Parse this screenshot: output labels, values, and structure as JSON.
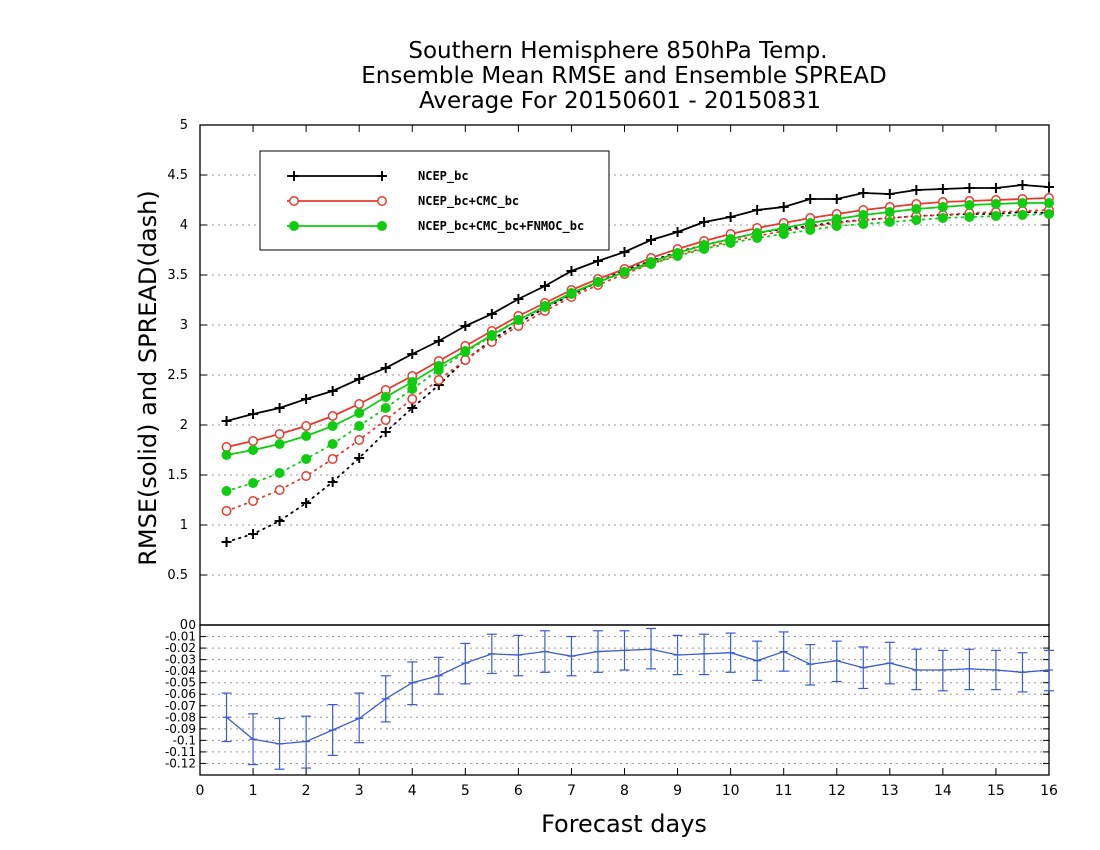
{
  "title_lines": [
    "Southern Hemisphere 850hPa Temp.",
    "Ensemble Mean RMSE and Ensemble SPREAD",
    "Average For 20150601 - 20150831"
  ],
  "colors": {
    "NCEP_bc": "#000000",
    "NCEP_bc+CMC_bc": "#e8392f",
    "NCEP_bc+CMC_bc+FNMOC_bc": "#10cc10",
    "difference": "#3a5bd1",
    "grid": "#9a9a9a"
  },
  "chart_data": [
    {
      "type": "line",
      "ylabel": "RMSE(solid) and SPREAD(dash)",
      "xlim": [
        0,
        16
      ],
      "ylim": [
        0,
        5
      ],
      "yticks": [
        "0",
        "0.5",
        "1",
        "1.5",
        "2",
        "2.5",
        "3",
        "3.5",
        "4",
        "4.5",
        "5"
      ],
      "grid": "horizontal dotted",
      "legend_position": "top-left",
      "x": [
        0.5,
        1,
        1.5,
        2,
        2.5,
        3,
        3.5,
        4,
        4.5,
        5,
        5.5,
        6,
        6.5,
        7,
        7.5,
        8,
        8.5,
        9,
        9.5,
        10,
        10.5,
        11,
        11.5,
        12,
        12.5,
        13,
        13.5,
        14,
        14.5,
        15,
        15.5,
        16
      ],
      "series": [
        {
          "name": "NCEP_bc",
          "marker": "plus",
          "style": "solid",
          "values": [
            2.04,
            2.11,
            2.17,
            2.26,
            2.34,
            2.46,
            2.57,
            2.71,
            2.84,
            2.99,
            3.11,
            3.26,
            3.39,
            3.54,
            3.64,
            3.73,
            3.85,
            3.93,
            4.03,
            4.08,
            4.15,
            4.18,
            4.26,
            4.26,
            4.32,
            4.31,
            4.35,
            4.36,
            4.37,
            4.37,
            4.4,
            4.38
          ]
        },
        {
          "name": "NCEP_bc",
          "marker": "plus",
          "style": "dotted",
          "values": [
            0.83,
            0.91,
            1.04,
            1.22,
            1.43,
            1.67,
            1.93,
            2.17,
            2.4,
            2.65,
            2.85,
            3.02,
            3.17,
            3.3,
            3.43,
            3.55,
            3.64,
            3.73,
            3.8,
            3.86,
            3.92,
            3.96,
            3.99,
            4.03,
            4.05,
            4.07,
            4.09,
            4.1,
            4.11,
            4.11,
            4.13,
            4.12
          ]
        },
        {
          "name": "NCEP_bc+CMC_bc",
          "marker": "open-circle",
          "style": "solid",
          "values": [
            1.78,
            1.84,
            1.91,
            1.99,
            2.09,
            2.21,
            2.35,
            2.49,
            2.64,
            2.79,
            2.94,
            3.09,
            3.22,
            3.35,
            3.46,
            3.56,
            3.67,
            3.76,
            3.84,
            3.91,
            3.97,
            4.02,
            4.07,
            4.11,
            4.15,
            4.18,
            4.21,
            4.23,
            4.24,
            4.25,
            4.26,
            4.27
          ]
        },
        {
          "name": "NCEP_bc+CMC_bc",
          "marker": "open-circle",
          "style": "dotted",
          "values": [
            1.14,
            1.24,
            1.35,
            1.49,
            1.66,
            1.85,
            2.05,
            2.26,
            2.45,
            2.65,
            2.83,
            2.99,
            3.14,
            3.28,
            3.4,
            3.51,
            3.61,
            3.7,
            3.77,
            3.84,
            3.89,
            3.94,
            3.98,
            4.02,
            4.05,
            4.07,
            4.09,
            4.1,
            4.12,
            4.13,
            4.14,
            4.15
          ]
        },
        {
          "name": "NCEP_bc+CMC_bc+FNMOC_bc",
          "marker": "filled-circle",
          "style": "solid",
          "values": [
            1.7,
            1.75,
            1.81,
            1.89,
            1.99,
            2.12,
            2.28,
            2.43,
            2.59,
            2.74,
            2.9,
            3.05,
            3.19,
            3.32,
            3.43,
            3.53,
            3.63,
            3.72,
            3.8,
            3.86,
            3.92,
            3.97,
            4.02,
            4.06,
            4.1,
            4.13,
            4.16,
            4.18,
            4.2,
            4.21,
            4.22,
            4.22
          ]
        },
        {
          "name": "NCEP_bc+CMC_bc+FNMOC_bc",
          "marker": "filled-circle",
          "style": "dotted",
          "values": [
            1.34,
            1.42,
            1.52,
            1.66,
            1.81,
            1.99,
            2.17,
            2.36,
            2.55,
            2.73,
            2.89,
            3.05,
            3.18,
            3.31,
            3.43,
            3.53,
            3.61,
            3.69,
            3.76,
            3.82,
            3.87,
            3.91,
            3.95,
            3.99,
            4.01,
            4.03,
            4.05,
            4.07,
            4.08,
            4.09,
            4.1,
            4.11
          ]
        }
      ]
    },
    {
      "type": "line",
      "xlabel": "Forecast days",
      "xlim": [
        0,
        16
      ],
      "ylim": [
        -0.13,
        0
      ],
      "xticks": [
        "0",
        "1",
        "2",
        "3",
        "4",
        "5",
        "6",
        "7",
        "8",
        "9",
        "10",
        "11",
        "12",
        "13",
        "14",
        "15",
        "16"
      ],
      "yticks": [
        "0",
        "-0.01",
        "-0.02",
        "-0.03",
        "-0.04",
        "-0.05",
        "-0.06",
        "-0.07",
        "-0.08",
        "-0.09",
        "-0.1",
        "-0.11",
        "-0.12"
      ],
      "grid": "horizontal dotted",
      "error_bars": true,
      "x": [
        0.5,
        1,
        1.5,
        2,
        2.5,
        3,
        3.5,
        4,
        4.5,
        5,
        5.5,
        6,
        6.5,
        7,
        7.5,
        8,
        8.5,
        9,
        9.5,
        10,
        10.5,
        11,
        11.5,
        12,
        12.5,
        13,
        13.5,
        14,
        14.5,
        15,
        15.5,
        16
      ],
      "values": [
        -0.08,
        -0.099,
        -0.103,
        -0.101,
        -0.091,
        -0.081,
        -0.064,
        -0.05,
        -0.044,
        -0.033,
        -0.025,
        -0.026,
        -0.023,
        -0.027,
        -0.023,
        -0.022,
        -0.021,
        -0.026,
        -0.025,
        -0.024,
        -0.031,
        -0.023,
        -0.034,
        -0.031,
        -0.037,
        -0.033,
        -0.039,
        -0.039,
        -0.038,
        -0.039,
        -0.041,
        -0.039
      ],
      "error_low": [
        -0.101,
        -0.121,
        -0.125,
        -0.124,
        -0.113,
        -0.102,
        -0.084,
        -0.069,
        -0.06,
        -0.051,
        -0.042,
        -0.044,
        -0.041,
        -0.044,
        -0.041,
        -0.039,
        -0.038,
        -0.043,
        -0.043,
        -0.041,
        -0.048,
        -0.04,
        -0.052,
        -0.049,
        -0.055,
        -0.051,
        -0.056,
        -0.057,
        -0.056,
        -0.056,
        -0.058,
        -0.057
      ],
      "error_high": [
        -0.059,
        -0.077,
        -0.081,
        -0.079,
        -0.069,
        -0.059,
        -0.044,
        -0.032,
        -0.028,
        -0.016,
        -0.008,
        -0.009,
        -0.005,
        -0.01,
        -0.005,
        -0.005,
        -0.003,
        -0.009,
        -0.008,
        -0.007,
        -0.014,
        -0.006,
        -0.017,
        -0.014,
        -0.019,
        -0.015,
        -0.021,
        -0.022,
        -0.021,
        -0.022,
        -0.024,
        -0.022
      ]
    }
  ]
}
